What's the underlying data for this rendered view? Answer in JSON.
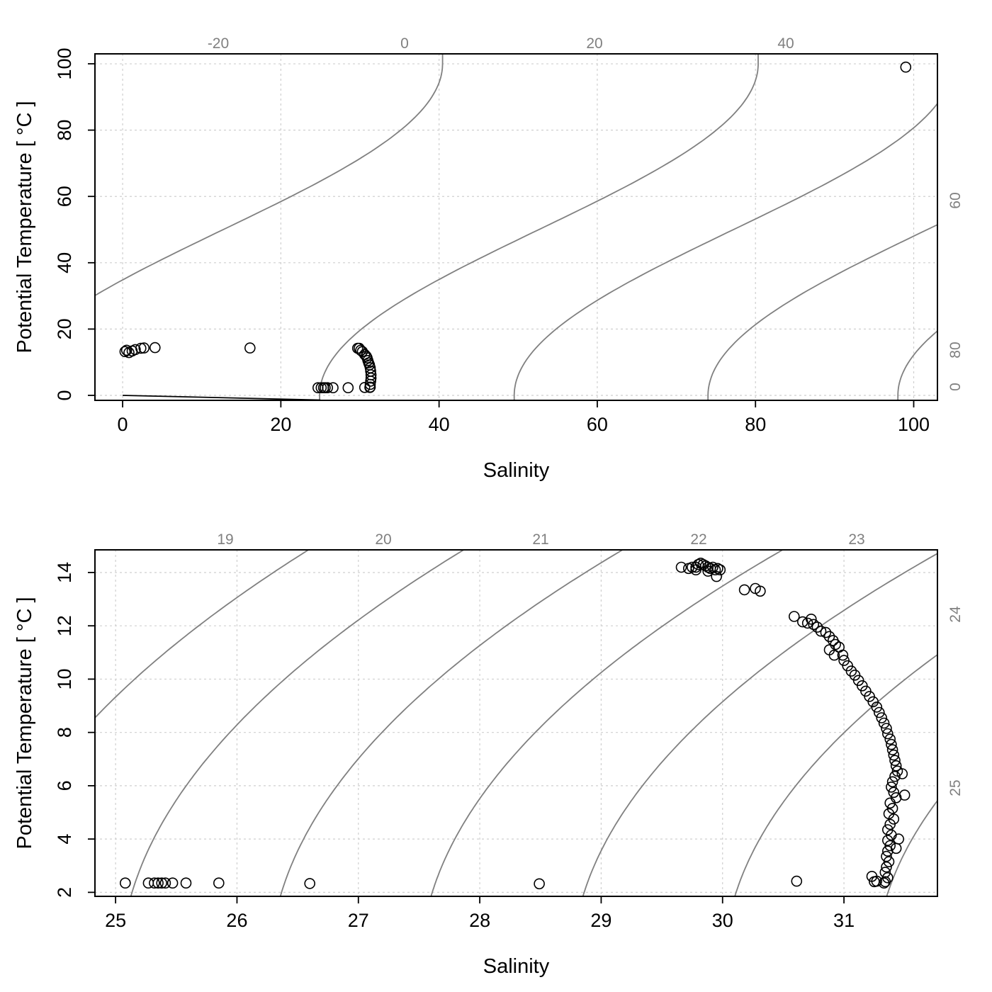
{
  "chart_data": [
    {
      "type": "scatter",
      "xlabel": "Salinity",
      "ylabel": "Potential Temperature [ °C ]",
      "xlim": [
        -3.5,
        103
      ],
      "ylim": [
        -1.5,
        103
      ],
      "x_ticks": [
        0,
        20,
        40,
        60,
        80,
        100
      ],
      "y_ticks": [
        0,
        20,
        40,
        60,
        80,
        100
      ],
      "grid": true,
      "isopycnal_labels": [
        "-20",
        "0",
        "20",
        "40",
        "60",
        "80",
        "0"
      ],
      "freezing_line": [
        [
          0,
          0
        ],
        [
          25,
          -1.4
        ]
      ],
      "series": [
        {
          "values": [
            [
              0.3,
              13.2
            ],
            [
              0.5,
              13.6
            ],
            [
              0.8,
              12.9
            ],
            [
              1.2,
              13.4
            ],
            [
              1.6,
              13.8
            ],
            [
              2.3,
              14.2
            ],
            [
              2.7,
              14.3
            ],
            [
              4.1,
              14.4
            ],
            [
              16.1,
              14.3
            ],
            [
              24.7,
              2.3
            ],
            [
              25.1,
              2.3
            ],
            [
              25.4,
              2.3
            ],
            [
              25.6,
              2.3
            ],
            [
              25.9,
              2.3
            ],
            [
              26.6,
              2.3
            ],
            [
              28.5,
              2.3
            ],
            [
              30.6,
              2.4
            ],
            [
              29.7,
              14.2
            ],
            [
              29.9,
              14.2
            ],
            [
              30.1,
              13.6
            ],
            [
              30.3,
              13.2
            ],
            [
              30.6,
              12.3
            ],
            [
              30.8,
              11.8
            ],
            [
              30.9,
              11.3
            ],
            [
              31.0,
              10.5
            ],
            [
              31.1,
              9.8
            ],
            [
              31.2,
              9.2
            ],
            [
              31.3,
              8.3
            ],
            [
              31.35,
              7.3
            ],
            [
              31.4,
              6.2
            ],
            [
              31.4,
              5.2
            ],
            [
              31.35,
              4.3
            ],
            [
              31.3,
              3.3
            ],
            [
              31.3,
              2.5
            ],
            [
              31.25,
              2.4
            ],
            [
              99.0,
              99.0
            ]
          ]
        }
      ]
    },
    {
      "type": "scatter",
      "xlabel": "Salinity",
      "ylabel": "Potential Temperature [ °C ]",
      "xlim": [
        24.83,
        31.77
      ],
      "ylim": [
        1.85,
        14.85
      ],
      "x_ticks": [
        25,
        26,
        27,
        28,
        29,
        30,
        31
      ],
      "y_ticks": [
        2,
        4,
        6,
        8,
        10,
        12,
        14
      ],
      "grid": true,
      "isopycnal_labels": [
        "19",
        "20",
        "21",
        "22",
        "23",
        "24",
        "25"
      ],
      "series": [
        {
          "values": [
            [
              25.08,
              2.35
            ],
            [
              25.27,
              2.35
            ],
            [
              25.32,
              2.35
            ],
            [
              25.35,
              2.35
            ],
            [
              25.38,
              2.35
            ],
            [
              25.41,
              2.35
            ],
            [
              25.47,
              2.35
            ],
            [
              25.58,
              2.35
            ],
            [
              25.85,
              2.35
            ],
            [
              26.6,
              2.33
            ],
            [
              28.49,
              2.32
            ],
            [
              30.61,
              2.42
            ],
            [
              29.66,
              14.2
            ],
            [
              29.72,
              14.15
            ],
            [
              29.75,
              14.2
            ],
            [
              29.78,
              14.2
            ],
            [
              29.8,
              14.3
            ],
            [
              29.82,
              14.35
            ],
            [
              29.84,
              14.3
            ],
            [
              29.86,
              14.25
            ],
            [
              29.88,
              14.2
            ],
            [
              29.9,
              14.15
            ],
            [
              29.92,
              14.2
            ],
            [
              29.94,
              14.1
            ],
            [
              29.96,
              14.15
            ],
            [
              29.98,
              14.1
            ],
            [
              29.95,
              13.85
            ],
            [
              29.88,
              14.05
            ],
            [
              29.78,
              14.1
            ],
            [
              30.18,
              13.35
            ],
            [
              30.27,
              13.4
            ],
            [
              30.31,
              13.3
            ],
            [
              30.59,
              12.35
            ],
            [
              30.66,
              12.15
            ],
            [
              30.7,
              12.1
            ],
            [
              30.73,
              12.25
            ],
            [
              30.75,
              12.05
            ],
            [
              30.78,
              11.95
            ],
            [
              30.81,
              11.8
            ],
            [
              30.85,
              11.75
            ],
            [
              30.88,
              11.6
            ],
            [
              30.91,
              11.45
            ],
            [
              30.93,
              11.3
            ],
            [
              30.88,
              11.1
            ],
            [
              30.92,
              10.9
            ],
            [
              30.96,
              11.2
            ],
            [
              30.99,
              10.9
            ],
            [
              31.0,
              10.7
            ],
            [
              31.03,
              10.5
            ],
            [
              31.06,
              10.3
            ],
            [
              31.09,
              10.15
            ],
            [
              31.12,
              9.95
            ],
            [
              31.15,
              9.75
            ],
            [
              31.18,
              9.55
            ],
            [
              31.21,
              9.35
            ],
            [
              31.24,
              9.15
            ],
            [
              31.27,
              8.95
            ],
            [
              31.29,
              8.75
            ],
            [
              31.31,
              8.55
            ],
            [
              31.33,
              8.35
            ],
            [
              31.35,
              8.15
            ],
            [
              31.36,
              7.95
            ],
            [
              31.38,
              7.75
            ],
            [
              31.39,
              7.55
            ],
            [
              31.4,
              7.35
            ],
            [
              31.41,
              7.15
            ],
            [
              31.42,
              6.95
            ],
            [
              31.43,
              6.75
            ],
            [
              31.44,
              6.55
            ],
            [
              31.48,
              6.45
            ],
            [
              31.42,
              6.35
            ],
            [
              31.4,
              6.15
            ],
            [
              31.39,
              5.95
            ],
            [
              31.41,
              5.75
            ],
            [
              31.5,
              5.65
            ],
            [
              31.43,
              5.55
            ],
            [
              31.38,
              5.35
            ],
            [
              31.4,
              5.15
            ],
            [
              31.37,
              4.95
            ],
            [
              31.41,
              4.75
            ],
            [
              31.38,
              4.55
            ],
            [
              31.36,
              4.35
            ],
            [
              31.39,
              4.15
            ],
            [
              31.45,
              4.0
            ],
            [
              31.36,
              3.95
            ],
            [
              31.38,
              3.75
            ],
            [
              31.43,
              3.65
            ],
            [
              31.36,
              3.55
            ],
            [
              31.35,
              3.35
            ],
            [
              31.37,
              3.15
            ],
            [
              31.35,
              2.95
            ],
            [
              31.34,
              2.75
            ],
            [
              31.36,
              2.55
            ],
            [
              31.34,
              2.4
            ],
            [
              31.33,
              2.35
            ],
            [
              31.25,
              2.4
            ],
            [
              31.27,
              2.42
            ],
            [
              31.23,
              2.6
            ]
          ]
        }
      ]
    }
  ]
}
